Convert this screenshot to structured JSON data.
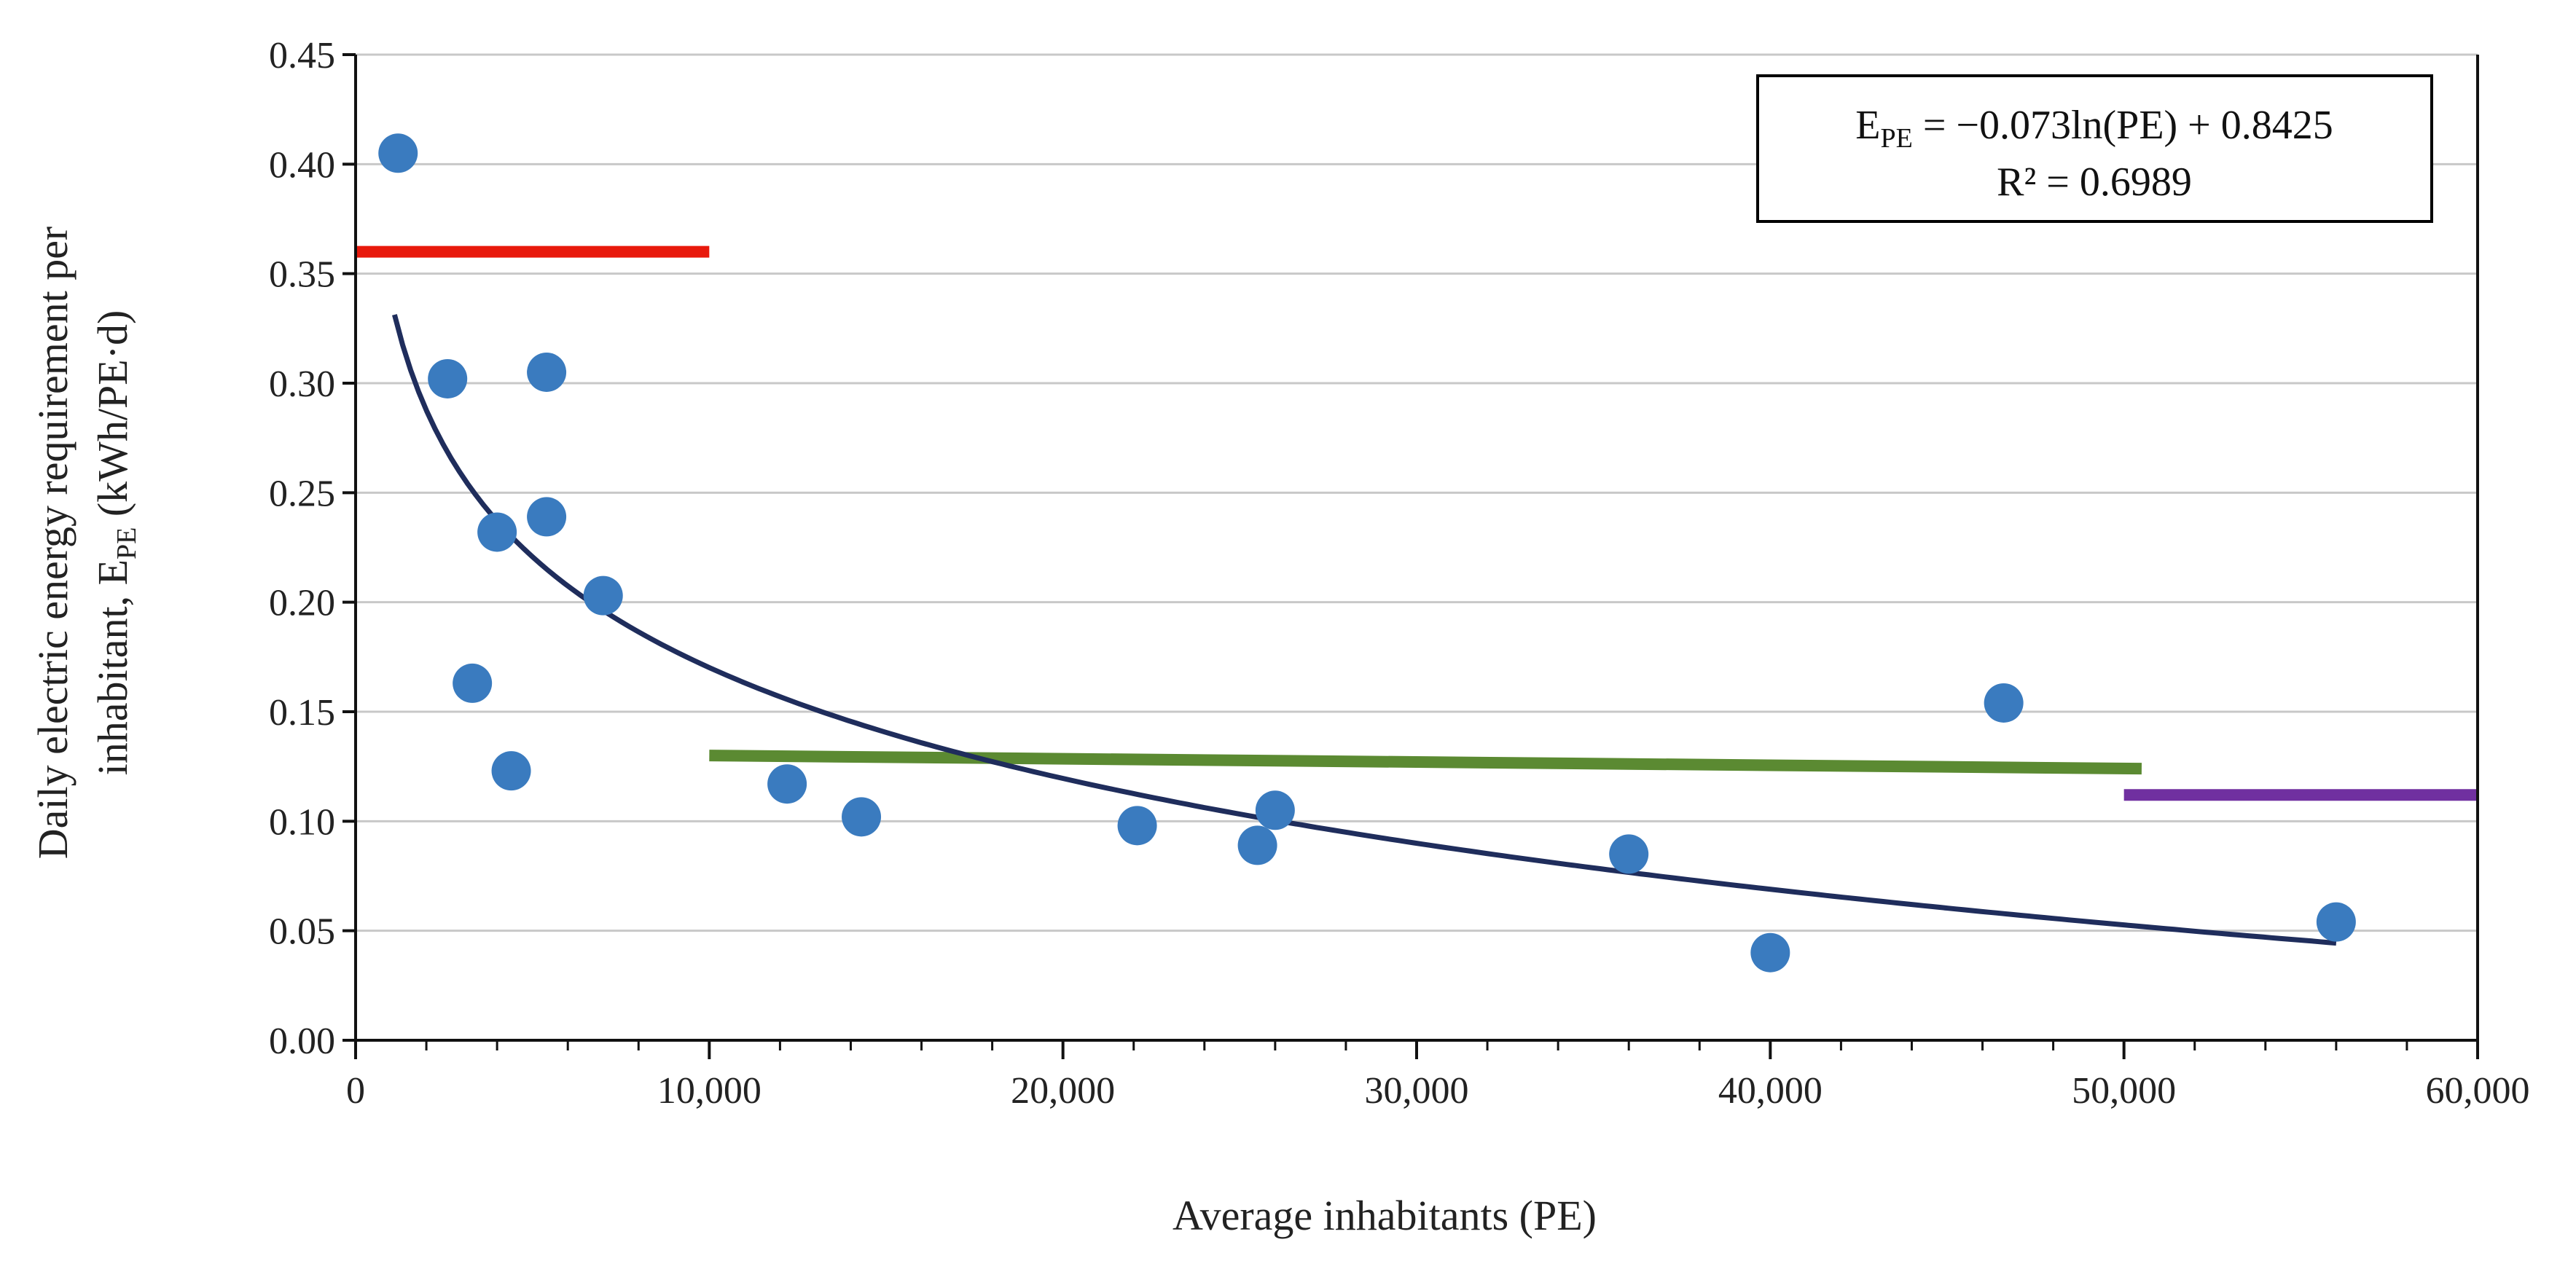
{
  "chart_data": {
    "type": "scatter",
    "title": "",
    "xlabel": "Average inhabitants (PE)",
    "ylabel": {
      "line1": "Daily electric energy requirement per",
      "line2_prefix": "inhabitant, E",
      "line2_sub": "PE",
      "line2_suffix": " (kWh/PE·d)"
    },
    "xlim": [
      0,
      60000
    ],
    "ylim": [
      0,
      0.45
    ],
    "x_ticks": [
      0,
      10000,
      20000,
      30000,
      40000,
      50000,
      60000
    ],
    "x_tick_labels": [
      "0",
      "10,000",
      "20,000",
      "30,000",
      "40,000",
      "50,000",
      "60,000"
    ],
    "y_ticks": [
      0,
      0.05,
      0.1,
      0.15,
      0.2,
      0.25,
      0.3,
      0.35,
      0.4,
      0.45
    ],
    "y_tick_labels": [
      "0.00",
      "0.05",
      "0.10",
      "0.15",
      "0.20",
      "0.25",
      "0.30",
      "0.35",
      "0.40",
      "0.45"
    ],
    "grid": "horizontal",
    "points": [
      {
        "x": 1200,
        "y": 0.405
      },
      {
        "x": 2600,
        "y": 0.302
      },
      {
        "x": 3300,
        "y": 0.163
      },
      {
        "x": 4000,
        "y": 0.232
      },
      {
        "x": 4400,
        "y": 0.123
      },
      {
        "x": 5400,
        "y": 0.305
      },
      {
        "x": 5400,
        "y": 0.239
      },
      {
        "x": 7000,
        "y": 0.203
      },
      {
        "x": 12200,
        "y": 0.117
      },
      {
        "x": 14300,
        "y": 0.102
      },
      {
        "x": 22100,
        "y": 0.098
      },
      {
        "x": 25500,
        "y": 0.089
      },
      {
        "x": 26000,
        "y": 0.105
      },
      {
        "x": 36000,
        "y": 0.085
      },
      {
        "x": 40000,
        "y": 0.04
      },
      {
        "x": 46600,
        "y": 0.154
      },
      {
        "x": 56000,
        "y": 0.054
      }
    ],
    "trendline": {
      "type": "log",
      "a": -0.073,
      "b": 0.8425,
      "x_start": 1100,
      "x_end": 56000
    },
    "reference_lines": [
      {
        "name": "red",
        "x_start": 0,
        "x_end": 10000,
        "y_start": 0.36,
        "y_end": 0.36
      },
      {
        "name": "green",
        "x_start": 10000,
        "x_end": 50500,
        "y_start": 0.13,
        "y_end": 0.124
      },
      {
        "name": "purple",
        "x_start": 50000,
        "x_end": 60000,
        "y_start": 0.112,
        "y_end": 0.112
      }
    ],
    "equation": {
      "line1_prefix": "E",
      "line1_sub": "PE",
      "line1_suffix": " = −0.073ln(PE) + 0.8425",
      "line2": "R² = 0.6989"
    },
    "colors": {
      "points": "#3a7bbf",
      "trendline": "#1f2d5c",
      "red": "#e8190c",
      "green": "#5b8a32",
      "purple": "#7030a0",
      "grid": "#c8c8c8",
      "axis": "#111111"
    }
  }
}
